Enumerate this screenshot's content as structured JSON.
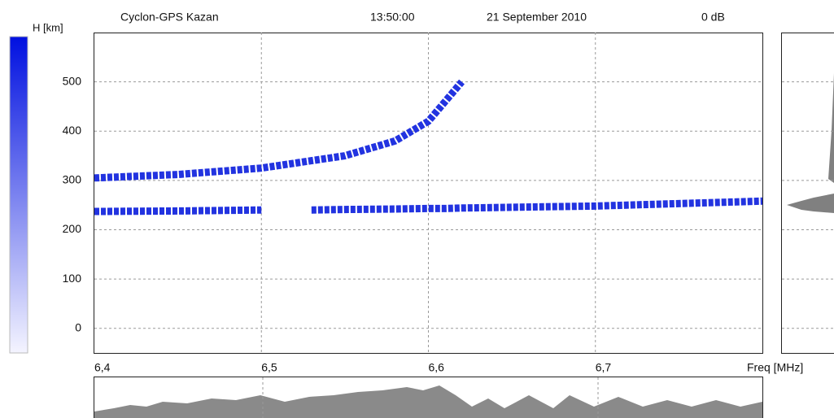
{
  "chart_data": {
    "type": "line",
    "title": "Cyclon-GPS  Kazan",
    "time": "13:50:00",
    "date": "21 September 2010",
    "gain": "0 dB",
    "y_label": "H [km]",
    "x_label": "Freq [MHz]",
    "x": [
      6.4,
      6.45,
      6.5,
      6.51,
      6.52,
      6.53,
      6.55,
      6.58,
      6.6,
      6.61,
      6.62,
      6.7,
      6.8
    ],
    "series": [
      {
        "color": "#2233e0",
        "values": [
          305,
          312,
          325,
          330,
          335,
          340,
          350,
          380,
          420,
          460,
          500,
          null,
          null
        ]
      },
      {
        "color": "#2233e0",
        "values": [
          237,
          238,
          240,
          null,
          null,
          240,
          241,
          242,
          243,
          243,
          244,
          248,
          258
        ]
      }
    ],
    "xlim": [
      6.4,
      6.8
    ],
    "xticks": [
      {
        "value": 6.4,
        "label": "6,4"
      },
      {
        "value": 6.5,
        "label": "6,5"
      },
      {
        "value": 6.6,
        "label": "6,6"
      },
      {
        "value": 6.7,
        "label": "6,7"
      }
    ],
    "ylim": [
      -50,
      600
    ],
    "yticks": [
      0,
      100,
      200,
      300,
      400,
      500
    ],
    "grid": true
  }
}
